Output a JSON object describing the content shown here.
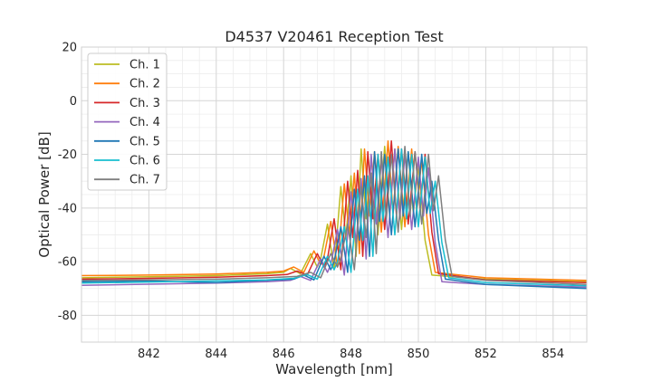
{
  "chart_data": {
    "type": "line",
    "title": "D4537 V20461 Reception Test",
    "xlabel": "Wavelength [nm]",
    "ylabel": "Optical Power [dB]",
    "xlim": [
      840.0,
      855.0
    ],
    "ylim": [
      -90,
      20
    ],
    "xticks": [
      842,
      844,
      846,
      848,
      850,
      852,
      854
    ],
    "yticks": [
      -80,
      -60,
      -40,
      -20,
      0,
      20
    ],
    "grid": true,
    "minor_grid": true,
    "legend_position": "top-left",
    "series": [
      {
        "name": "Ch. 1",
        "color": "#bcbd22",
        "x": [
          840.0,
          842.0,
          844.0,
          845.5,
          846.0,
          846.2,
          846.5,
          846.8,
          847.0,
          847.1,
          847.3,
          847.5,
          847.7,
          847.85,
          848.0,
          848.15,
          848.3,
          848.45,
          848.6,
          848.8,
          849.0,
          849.15,
          849.3,
          849.5,
          849.7,
          849.85,
          850.0,
          850.2,
          850.4,
          852.0,
          855.0
        ],
        "y": [
          -66,
          -65.6,
          -65.2,
          -64.5,
          -64,
          -62.5,
          -64.5,
          -57,
          -62,
          -59,
          -46,
          -63,
          -32,
          -51,
          -28,
          -58,
          -18,
          -44,
          -21,
          -50,
          -17,
          -43,
          -18,
          -48,
          -19,
          -42,
          -24,
          -52,
          -65,
          -66.5,
          -67.5
        ]
      },
      {
        "name": "Ch. 2",
        "color": "#ff7f0e",
        "x": [
          840.0,
          842.0,
          844.0,
          845.5,
          846.0,
          846.3,
          846.6,
          846.9,
          847.1,
          847.2,
          847.4,
          847.6,
          847.8,
          847.95,
          848.1,
          848.25,
          848.4,
          848.55,
          848.7,
          848.9,
          849.1,
          849.25,
          849.4,
          849.6,
          849.8,
          849.95,
          850.1,
          850.3,
          850.5,
          852.0,
          855.0
        ],
        "y": [
          -65.2,
          -65,
          -64.6,
          -64,
          -63.5,
          -62,
          -64,
          -56,
          -61,
          -58,
          -45,
          -62,
          -31,
          -50,
          -27,
          -57,
          -18,
          -43,
          -19,
          -49,
          -15,
          -42,
          -17,
          -47,
          -18,
          -41,
          -22,
          -50,
          -64,
          -66,
          -67
        ]
      },
      {
        "name": "Ch. 3",
        "color": "#d62728",
        "x": [
          840.0,
          842.0,
          844.0,
          845.5,
          846.1,
          846.4,
          846.7,
          847.0,
          847.2,
          847.3,
          847.5,
          847.7,
          847.9,
          848.05,
          848.2,
          848.35,
          848.5,
          848.65,
          848.8,
          849.0,
          849.2,
          849.35,
          849.5,
          849.7,
          849.9,
          850.05,
          850.2,
          850.4,
          850.6,
          852.0,
          855.0
        ],
        "y": [
          -66.5,
          -66.2,
          -65.8,
          -65.2,
          -64.8,
          -63.5,
          -65,
          -57,
          -62,
          -59,
          -44,
          -63,
          -30,
          -51,
          -26,
          -58,
          -19,
          -44,
          -20,
          -48,
          -15,
          -43,
          -18,
          -46,
          -19,
          -40,
          -20,
          -49,
          -64.5,
          -66.8,
          -67.8
        ]
      },
      {
        "name": "Ch. 4",
        "color": "#9467bd",
        "x": [
          840.0,
          842.0,
          844.0,
          845.5,
          846.2,
          846.5,
          846.8,
          847.1,
          847.3,
          847.4,
          847.6,
          847.8,
          848.0,
          848.15,
          848.3,
          848.45,
          848.6,
          848.75,
          848.9,
          849.1,
          849.3,
          849.45,
          849.6,
          849.8,
          850.0,
          850.15,
          850.3,
          850.5,
          850.7,
          852.0,
          855.0
        ],
        "y": [
          -68.8,
          -68.4,
          -68,
          -67.5,
          -67,
          -65.5,
          -67,
          -59,
          -64,
          -61,
          -48,
          -65,
          -34,
          -53,
          -29,
          -59,
          -20,
          -46,
          -22,
          -51,
          -18,
          -44,
          -20,
          -48,
          -21,
          -43,
          -25,
          -53,
          -67.5,
          -68.5,
          -69.5
        ]
      },
      {
        "name": "Ch. 5",
        "color": "#1f77b4",
        "x": [
          840.0,
          842.0,
          844.0,
          845.5,
          846.3,
          846.6,
          846.9,
          847.2,
          847.4,
          847.5,
          847.7,
          847.9,
          848.1,
          848.25,
          848.4,
          848.55,
          848.7,
          848.85,
          849.0,
          849.2,
          849.4,
          849.55,
          849.7,
          849.9,
          850.1,
          850.25,
          850.4,
          850.6,
          850.8,
          852.0,
          855.0
        ],
        "y": [
          -67.5,
          -67.2,
          -67.8,
          -67,
          -66.5,
          -65,
          -66.8,
          -58,
          -63,
          -60,
          -47,
          -64,
          -33,
          -52,
          -28,
          -58,
          -19,
          -45,
          -20,
          -50,
          -18,
          -43,
          -19,
          -47,
          -20,
          -42,
          -30,
          -52,
          -66.5,
          -68.5,
          -70
        ]
      },
      {
        "name": "Ch. 6",
        "color": "#17becf",
        "x": [
          840.0,
          842.0,
          844.0,
          845.5,
          846.3,
          846.7,
          847.0,
          847.3,
          847.5,
          847.6,
          847.8,
          848.0,
          848.2,
          848.35,
          848.5,
          848.65,
          848.8,
          848.95,
          849.1,
          849.3,
          849.5,
          849.65,
          849.8,
          850.0,
          850.2,
          850.35,
          850.5,
          850.7,
          850.9,
          852.0,
          855.0
        ],
        "y": [
          -68,
          -67.6,
          -67.2,
          -66.8,
          -66.2,
          -64.8,
          -66.5,
          -58,
          -63,
          -60,
          -47,
          -64,
          -33,
          -52,
          -28,
          -58,
          -20,
          -45,
          -21,
          -50,
          -18,
          -44,
          -20,
          -47,
          -21,
          -42,
          -30,
          -53,
          -66,
          -67.8,
          -69
        ]
      },
      {
        "name": "Ch. 7",
        "color": "#7f7f7f",
        "x": [
          840.0,
          842.0,
          844.0,
          845.5,
          846.4,
          846.8,
          847.1,
          847.4,
          847.6,
          847.7,
          847.9,
          848.1,
          848.3,
          848.45,
          848.6,
          848.75,
          848.9,
          849.05,
          849.2,
          849.4,
          849.6,
          849.75,
          849.9,
          850.1,
          850.3,
          850.45,
          850.6,
          850.8,
          851.0,
          852.0,
          855.0
        ],
        "y": [
          -67,
          -66.8,
          -66.5,
          -66,
          -65.5,
          -64,
          -66,
          -57,
          -62,
          -59,
          -46,
          -63,
          -32,
          -51,
          -27,
          -57,
          -19,
          -44,
          -20,
          -49,
          -17,
          -43,
          -19,
          -46,
          -20,
          -41,
          -28,
          -52,
          -65.5,
          -67,
          -68.5
        ]
      }
    ]
  }
}
